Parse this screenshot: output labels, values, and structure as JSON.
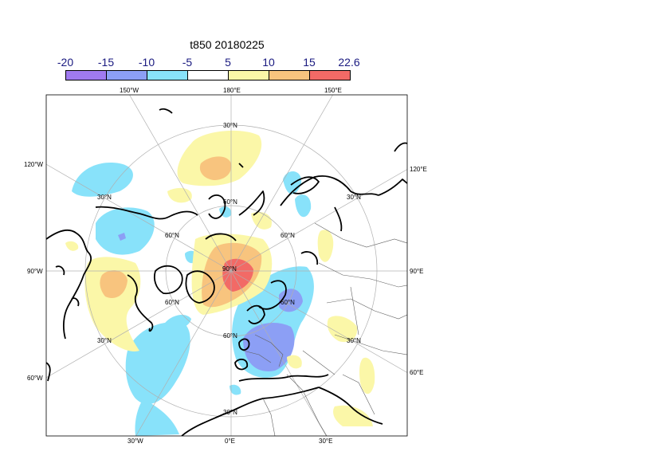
{
  "title": "t850 20180225",
  "legend": {
    "ticks": [
      "-20",
      "-15",
      "-10",
      "-5",
      "5",
      "10",
      "15",
      "22.6"
    ],
    "colors": [
      "#a07af0",
      "#8c9ff5",
      "#88e2fa",
      "#ffffff",
      "#fbf7a8",
      "#f8c47e",
      "#f26a66"
    ]
  },
  "map": {
    "projection": "north polar stereographic",
    "top_labels": [
      "150°W",
      "180°E",
      "150°E"
    ],
    "bottom_labels": [
      "30°W",
      "0°E",
      "30°E"
    ],
    "left_labels": [
      "120°W",
      "90°W",
      "60°W"
    ],
    "right_labels": [
      "120°E",
      "90°E",
      "60°E"
    ],
    "interior_labels": [
      "30°N",
      "30°N",
      "60°N",
      "60°N",
      "60°N",
      "60°N",
      "90°N",
      "60°N",
      "30°N",
      "30°N",
      "30°N",
      "30°N",
      "60°N"
    ]
  }
}
